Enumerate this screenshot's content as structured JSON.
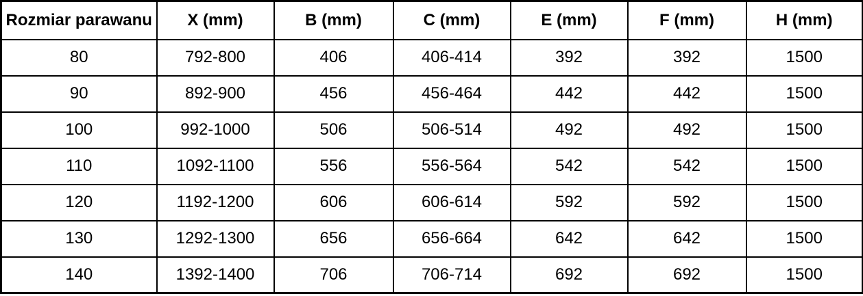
{
  "colors": {
    "border": "#000000",
    "text": "#000000",
    "background": "#ffffff"
  },
  "table": {
    "columns": [
      {
        "label": "Rozmiar parawanu"
      },
      {
        "label": "X (mm)"
      },
      {
        "label": "B (mm)"
      },
      {
        "label": "C (mm)"
      },
      {
        "label": "E (mm)"
      },
      {
        "label": "F (mm)"
      },
      {
        "label": "H (mm)"
      }
    ],
    "rows": [
      {
        "cells": [
          "80",
          "792-800",
          "406",
          "406-414",
          "392",
          "392",
          "1500"
        ]
      },
      {
        "cells": [
          "90",
          "892-900",
          "456",
          "456-464",
          "442",
          "442",
          "1500"
        ]
      },
      {
        "cells": [
          "100",
          "992-1000",
          "506",
          "506-514",
          "492",
          "492",
          "1500"
        ]
      },
      {
        "cells": [
          "110",
          "1092-1100",
          "556",
          "556-564",
          "542",
          "542",
          "1500"
        ]
      },
      {
        "cells": [
          "120",
          "1192-1200",
          "606",
          "606-614",
          "592",
          "592",
          "1500"
        ]
      },
      {
        "cells": [
          "130",
          "1292-1300",
          "656",
          "656-664",
          "642",
          "642",
          "1500"
        ]
      },
      {
        "cells": [
          "140",
          "1392-1400",
          "706",
          "706-714",
          "692",
          "692",
          "1500"
        ]
      }
    ]
  }
}
